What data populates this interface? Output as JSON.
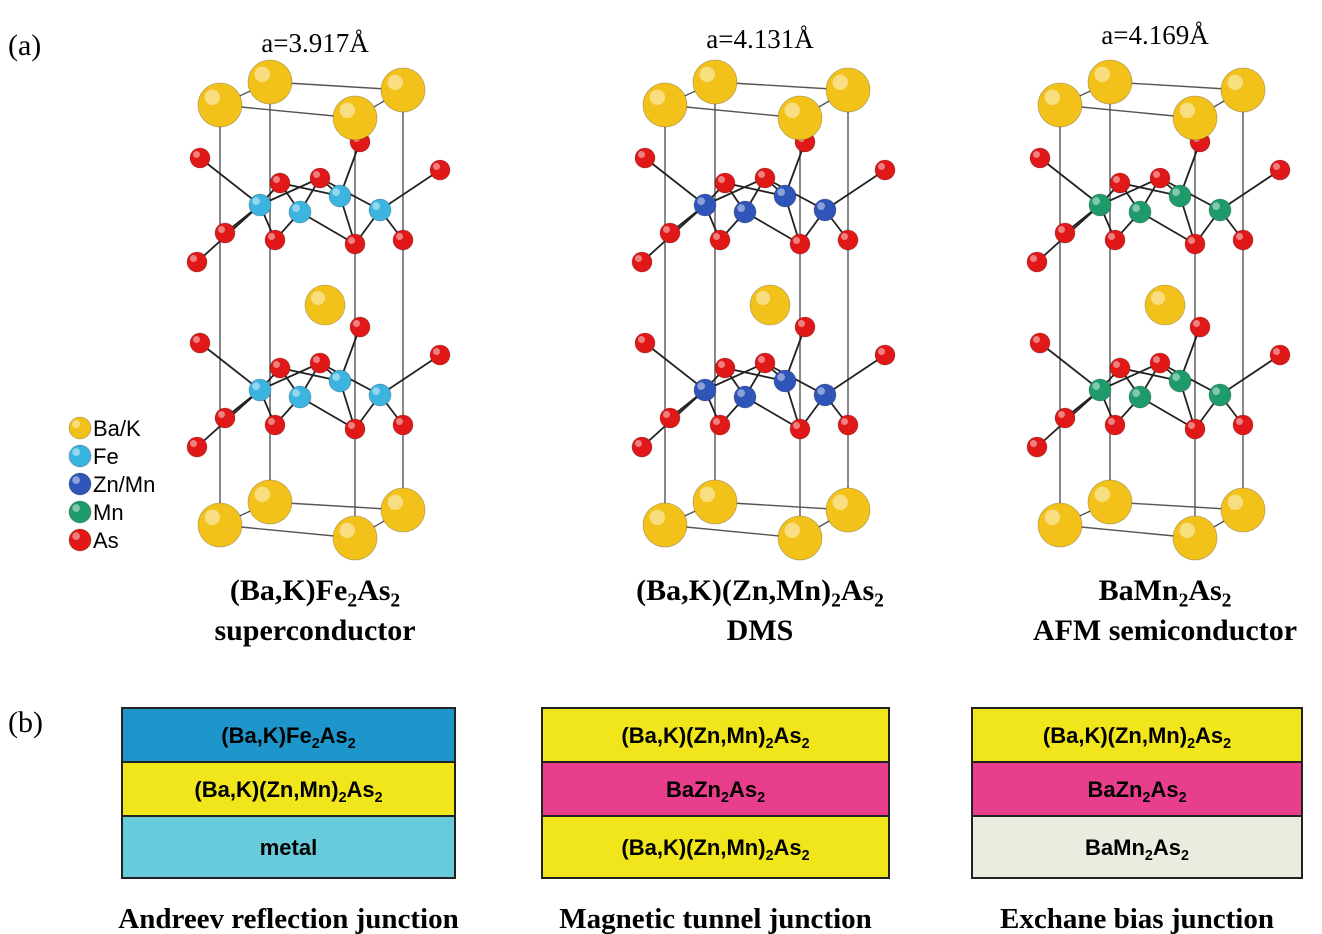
{
  "label_a": "(a)",
  "structures": [
    {
      "lattice": "a=3.917Å",
      "formula": [
        "(Ba,K)Fe",
        "2",
        "As",
        "2"
      ],
      "kind": "superconductor"
    },
    {
      "lattice": "a=4.131Å",
      "formula": [
        "(Ba,K)(Zn,Mn)",
        "2",
        "As",
        "2"
      ],
      "kind": "DMS"
    },
    {
      "lattice": "a=4.169Å",
      "formula": [
        "BaMn",
        "2",
        "As",
        "2"
      ],
      "kind": "AFM semiconductor"
    }
  ],
  "legend": [
    {
      "label": "Ba/K",
      "color": "#f2c21b"
    },
    {
      "label": "Fe",
      "color": "#3cb4e0"
    },
    {
      "label": "Zn/Mn",
      "color": "#2f55b8"
    },
    {
      "label": "Mn",
      "color": "#1f9a6a"
    },
    {
      "label": "As",
      "color": "#e01818"
    }
  ],
  "label_b": "(b)",
  "junctions": [
    {
      "layers": [
        {
          "formula": [
            "(Ba,K)Fe",
            "2",
            "As",
            "2"
          ],
          "color": "#1e96cc"
        },
        {
          "formula": [
            "(Ba,K)(Zn,Mn)",
            "2",
            "As",
            "2"
          ],
          "color": "#f1e61c"
        },
        {
          "formula": [
            "metal"
          ],
          "color": "#67cbdc"
        }
      ],
      "name": "Andreev reflection junction"
    },
    {
      "layers": [
        {
          "formula": [
            "(Ba,K)(Zn,Mn)",
            "2",
            "As",
            "2"
          ],
          "color": "#f1e61c"
        },
        {
          "formula": [
            "BaZn",
            "2",
            "As",
            "2"
          ],
          "color": "#e83e8c"
        },
        {
          "formula": [
            "(Ba,K)(Zn,Mn)",
            "2",
            "As",
            "2"
          ],
          "color": "#f1e61c"
        }
      ],
      "name": "Magnetic tunnel junction"
    },
    {
      "layers": [
        {
          "formula": [
            "(Ba,K)(Zn,Mn)",
            "2",
            "As",
            "2"
          ],
          "color": "#f1e61c"
        },
        {
          "formula": [
            "BaZn",
            "2",
            "As",
            "2"
          ],
          "color": "#e83e8c"
        },
        {
          "formula": [
            "BaMn",
            "2",
            "As",
            "2"
          ],
          "color": "#ecebe0"
        }
      ],
      "name": "Exchane bias junction"
    }
  ]
}
